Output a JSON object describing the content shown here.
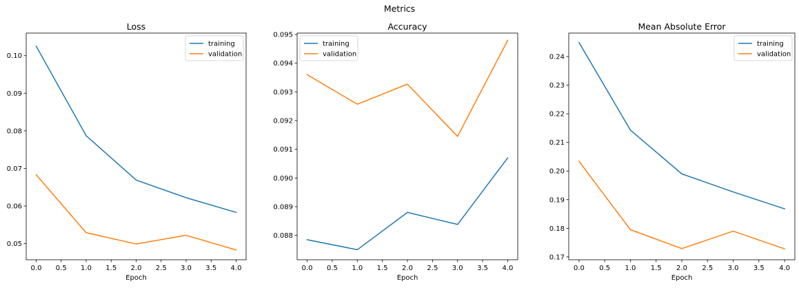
{
  "suptitle": "Metrics",
  "chart_data": [
    {
      "type": "line",
      "title": "Loss",
      "xlabel": "Epoch",
      "ylabel": "",
      "x": [
        0,
        1,
        2,
        3,
        4
      ],
      "xlim": [
        -0.2,
        4.2
      ],
      "ylim": [
        0.0457,
        0.106
      ],
      "xticks": [
        0.0,
        0.5,
        1.0,
        1.5,
        2.0,
        2.5,
        3.0,
        3.5,
        4.0
      ],
      "xtick_labels": [
        "0.0",
        "0.5",
        "1.0",
        "1.5",
        "2.0",
        "2.5",
        "3.0",
        "3.5",
        "4.0"
      ],
      "yticks": [
        0.05,
        0.06,
        0.07,
        0.08,
        0.09,
        0.1
      ],
      "ytick_labels": [
        "0.05",
        "0.06",
        "0.07",
        "0.08",
        "0.09",
        "0.10"
      ],
      "legend_position": "top-right",
      "grid": false,
      "series": [
        {
          "name": "training",
          "color": "#1f77b4",
          "values": [
            0.1025,
            0.0787,
            0.0669,
            0.0622,
            0.0583
          ]
        },
        {
          "name": "validation",
          "color": "#ff7f0e",
          "values": [
            0.0683,
            0.0529,
            0.0499,
            0.0522,
            0.0483
          ]
        }
      ]
    },
    {
      "type": "line",
      "title": "Accuracy",
      "xlabel": "Epoch",
      "ylabel": "",
      "x": [
        0,
        1,
        2,
        3,
        4
      ],
      "xlim": [
        -0.2,
        4.2
      ],
      "ylim": [
        0.08715,
        0.09505
      ],
      "xticks": [
        0.0,
        0.5,
        1.0,
        1.5,
        2.0,
        2.5,
        3.0,
        3.5,
        4.0
      ],
      "xtick_labels": [
        "0.0",
        "0.5",
        "1.0",
        "1.5",
        "2.0",
        "2.5",
        "3.0",
        "3.5",
        "4.0"
      ],
      "yticks": [
        0.088,
        0.089,
        0.09,
        0.091,
        0.092,
        0.093,
        0.094,
        0.095
      ],
      "ytick_labels": [
        "0.088",
        "0.089",
        "0.090",
        "0.091",
        "0.092",
        "0.093",
        "0.094",
        "0.095"
      ],
      "legend_position": "top-left",
      "grid": false,
      "series": [
        {
          "name": "training",
          "color": "#1f77b4",
          "values": [
            0.08785,
            0.0875,
            0.0888,
            0.08838,
            0.0907
          ]
        },
        {
          "name": "validation",
          "color": "#ff7f0e",
          "values": [
            0.0936,
            0.09257,
            0.09327,
            0.09145,
            0.0948
          ]
        }
      ]
    },
    {
      "type": "line",
      "title": "Mean Absolute Error",
      "xlabel": "Epoch",
      "ylabel": "",
      "x": [
        0,
        1,
        2,
        3,
        4
      ],
      "xlim": [
        -0.2,
        4.2
      ],
      "ylim": [
        0.169,
        0.2482
      ],
      "xticks": [
        0.0,
        0.5,
        1.0,
        1.5,
        2.0,
        2.5,
        3.0,
        3.5,
        4.0
      ],
      "xtick_labels": [
        "0.0",
        "0.5",
        "1.0",
        "1.5",
        "2.0",
        "2.5",
        "3.0",
        "3.5",
        "4.0"
      ],
      "yticks": [
        0.17,
        0.18,
        0.19,
        0.2,
        0.21,
        0.22,
        0.23,
        0.24
      ],
      "ytick_labels": [
        "0.17",
        "0.18",
        "0.19",
        "0.20",
        "0.21",
        "0.22",
        "0.23",
        "0.24"
      ],
      "legend_position": "top-right",
      "grid": false,
      "series": [
        {
          "name": "training",
          "color": "#1f77b4",
          "values": [
            0.2449,
            0.2143,
            0.199,
            0.1927,
            0.1868
          ]
        },
        {
          "name": "validation",
          "color": "#ff7f0e",
          "values": [
            0.2034,
            0.1795,
            0.1729,
            0.179,
            0.1728
          ]
        }
      ]
    }
  ]
}
